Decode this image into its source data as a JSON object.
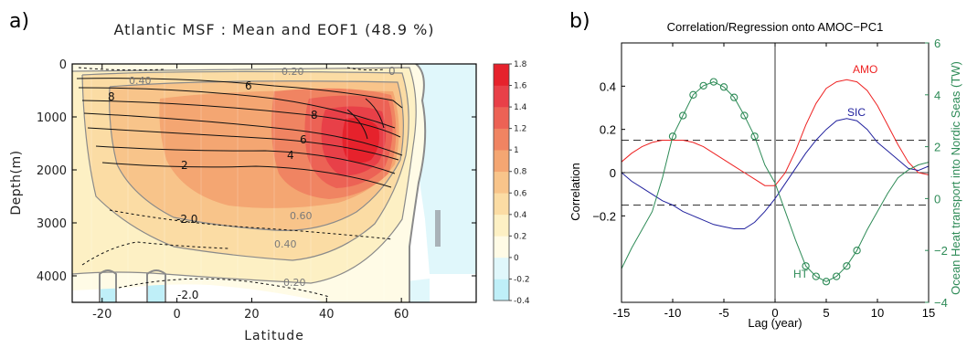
{
  "panels": {
    "a": {
      "letter": "a)"
    },
    "b": {
      "letter": "b)"
    }
  },
  "chart_data": [
    {
      "type": "heatmap",
      "title": "Atlantic MSF : Mean and EOF1 (48.9 %)",
      "xlabel": "Latitude",
      "ylabel": "Depth(m)",
      "xlim": [
        -28,
        80
      ],
      "ylim": [
        4500,
        0
      ],
      "x_ticks": [
        -20,
        0,
        20,
        40,
        60
      ],
      "y_ticks": [
        0,
        1000,
        2000,
        3000,
        4000
      ],
      "colorbar": {
        "levels": [
          -0.4,
          -0.2,
          0,
          0.2,
          0.4,
          0.6,
          0.8,
          1,
          1.2,
          1.4,
          1.6,
          1.8
        ],
        "labels": [
          "-0.4",
          "-0.2",
          "0",
          "0.2",
          "0.4",
          "0.6",
          "0.8",
          "1",
          "1.2",
          "1.4",
          "1.6",
          "1.8"
        ],
        "colors": [
          "#bfeff8",
          "#e0f7fb",
          "#fffbe6",
          "#fdf0c4",
          "#fbdca4",
          "#f8c48a",
          "#f4a672",
          "#f08462",
          "#ec6255",
          "#e84048",
          "#e6222c"
        ]
      },
      "mean_contour_labels": [
        "8",
        "6",
        "8",
        "6",
        "4",
        "2",
        "-2.0",
        "-2.0",
        "0"
      ],
      "eof_contour_labels": [
        "0.20",
        "0.40",
        "0.60",
        "0.40",
        "0.20"
      ]
    },
    {
      "type": "line",
      "title": "Correlation/Regression onto AMOC−PC1",
      "xlabel": "Lag (year)",
      "ylabel": "Correlation",
      "y2label": "Ocean Heat transport into Nordic Seas (TW)",
      "xlim": [
        -15,
        15
      ],
      "ylim": [
        -0.6,
        0.6
      ],
      "y2lim": [
        -4,
        6
      ],
      "x_ticks": [
        -15,
        -10,
        -5,
        0,
        5,
        10,
        15
      ],
      "y_ticks": [
        -0.2,
        0,
        0.2,
        0.4
      ],
      "y_tick_labels": [
        "−0.2",
        "0",
        "0.2",
        "0.4"
      ],
      "y2_ticks": [
        -4,
        -2,
        0,
        2,
        4,
        6
      ],
      "y2_tick_labels": [
        "−4",
        "−2",
        "0",
        "2",
        "4",
        "6"
      ],
      "significance_levels": [
        0.15,
        -0.15
      ],
      "x": [
        -15,
        -14,
        -13,
        -12,
        -11,
        -10,
        -9,
        -8,
        -7,
        -6,
        -5,
        -4,
        -3,
        -2,
        -1,
        0,
        1,
        2,
        3,
        4,
        5,
        6,
        7,
        8,
        9,
        10,
        11,
        12,
        13,
        14,
        15
      ],
      "series": [
        {
          "name": "AMO",
          "color": "#ee2222",
          "axis": "left",
          "values": [
            0.05,
            0.09,
            0.12,
            0.14,
            0.15,
            0.15,
            0.15,
            0.14,
            0.12,
            0.09,
            0.06,
            0.03,
            0.0,
            -0.03,
            -0.06,
            -0.06,
            0.0,
            0.1,
            0.22,
            0.32,
            0.39,
            0.42,
            0.43,
            0.42,
            0.38,
            0.31,
            0.22,
            0.13,
            0.05,
            0.0,
            -0.01
          ]
        },
        {
          "name": "SIC",
          "color": "#22229e",
          "axis": "left",
          "values": [
            0.0,
            -0.04,
            -0.07,
            -0.1,
            -0.13,
            -0.15,
            -0.18,
            -0.2,
            -0.22,
            -0.24,
            -0.25,
            -0.26,
            -0.26,
            -0.23,
            -0.18,
            -0.12,
            -0.05,
            0.02,
            0.09,
            0.15,
            0.2,
            0.24,
            0.25,
            0.24,
            0.2,
            0.14,
            0.1,
            0.06,
            0.02,
            0.01,
            0.03
          ]
        },
        {
          "name": "HT",
          "color": "#2e8b57",
          "axis": "right",
          "values": [
            -2.7,
            -1.9,
            -1.2,
            -0.5,
            0.8,
            2.4,
            3.2,
            4.0,
            4.35,
            4.5,
            4.3,
            3.9,
            3.2,
            2.4,
            1.3,
            0.6,
            -0.5,
            -1.6,
            -2.6,
            -3.0,
            -3.2,
            -3.0,
            -2.6,
            -2.0,
            -1.2,
            -0.5,
            0.2,
            0.8,
            1.1,
            1.3,
            1.4
          ],
          "markers_at": [
            -10,
            -9,
            -8,
            -7,
            -6,
            -5,
            -4,
            -3,
            -2,
            3,
            4,
            5,
            6,
            7,
            8
          ]
        }
      ],
      "annotations": [
        "AMO",
        "SIC",
        "HT"
      ]
    }
  ]
}
